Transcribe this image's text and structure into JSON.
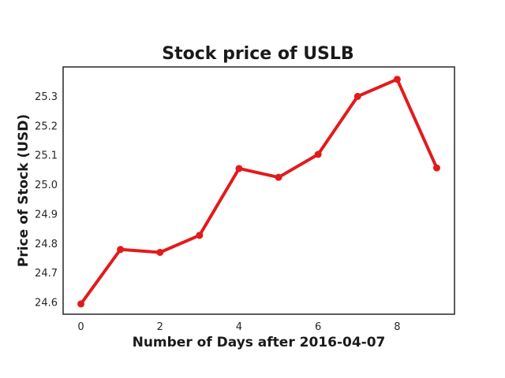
{
  "chart_data": {
    "type": "line",
    "title": "Stock price of USLB",
    "xlabel": "Number of Days after 2016-04-07",
    "ylabel": "Price of Stock (USD)",
    "x": [
      0,
      1,
      2,
      3,
      4,
      5,
      6,
      7,
      8,
      9
    ],
    "series": [
      {
        "values": [
          24.595,
          24.78,
          24.77,
          24.828,
          25.055,
          25.025,
          25.103,
          25.3,
          25.358,
          25.057
        ]
      }
    ],
    "xlim": [
      -0.45,
      9.45
    ],
    "ylim": [
      24.56,
      25.4
    ],
    "xticks": [
      0,
      2,
      4,
      6,
      8
    ],
    "yticks": [
      24.6,
      24.7,
      24.8,
      24.9,
      25.0,
      25.1,
      25.2,
      25.3
    ],
    "xtick_labels": [
      "0",
      "2",
      "4",
      "6",
      "8"
    ],
    "ytick_labels": [
      "24.6",
      "24.7",
      "24.8",
      "24.9",
      "25.0",
      "25.1",
      "25.2",
      "25.3"
    ],
    "grid": false,
    "legend": "none",
    "colors": {
      "line": "#e31a1c",
      "marker": "#e31a1c",
      "frame": "#262626"
    }
  }
}
